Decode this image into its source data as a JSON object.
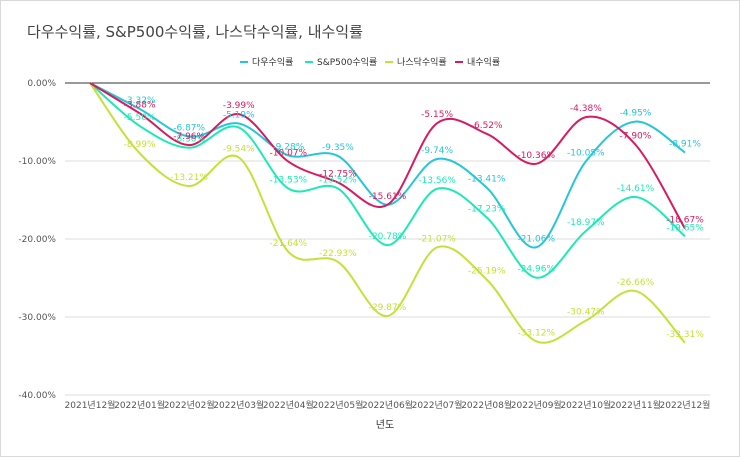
{
  "chart_data": {
    "type": "line",
    "title": "다우수익률, S&P500수익률, 나스닥수익률, 내수익률",
    "xlabel": "년도",
    "ylabel": "",
    "ylim": [
      -40,
      0
    ],
    "y_ticks": [
      0,
      -10,
      -20,
      -30,
      -40
    ],
    "y_tick_labels": [
      "0.00%",
      "-10.00%",
      "-20.00%",
      "-30.00%",
      "-40.00%"
    ],
    "grid": true,
    "legend": "top-center",
    "categories": [
      "2021년12월",
      "2022년01월",
      "2022년02월",
      "2022년03월",
      "2022년04월",
      "2022년05월",
      "2022년06월",
      "2022년07월",
      "2022년08월",
      "2022년09월",
      "2022년10월",
      "2022년11월",
      "2022년12월"
    ],
    "series": [
      {
        "name": "다우수익률",
        "color": "#26c6da",
        "values": [
          0,
          -3.32,
          -6.87,
          -5.19,
          -9.28,
          -9.35,
          -15.61,
          -9.74,
          -13.41,
          -21.06,
          -10.05,
          -4.95,
          -8.91
        ],
        "labels": [
          "",
          "-3.32%",
          "-6.87%",
          "-5.19%",
          "-9.28%",
          "-9.35%",
          "",
          "-9.74%",
          "-13.41%",
          "-21.06%",
          "-10.05%",
          "-4.95%",
          "-8.91%"
        ]
      },
      {
        "name": "S&P500수익률",
        "color": "#1de9b6",
        "values": [
          0,
          -5.5,
          -8.3,
          -5.7,
          -13.53,
          -13.52,
          -20.78,
          -13.56,
          -17.23,
          -24.96,
          -18.97,
          -14.61,
          -19.65
        ],
        "labels": [
          "",
          "-5.50%",
          "-8.30%",
          "",
          "-13.53%",
          "-13.52%",
          "-20.78%",
          "-13.56%",
          "-17.23%",
          "-24.96%",
          "-18.97%",
          "-14.61%",
          "-19.65%"
        ]
      },
      {
        "name": "나스닥수익률",
        "color": "#c6e03a",
        "values": [
          0,
          -8.99,
          -13.21,
          -9.54,
          -21.64,
          -22.93,
          -29.87,
          -21.07,
          -25.19,
          -33.12,
          -30.47,
          -26.66,
          -33.31
        ],
        "labels": [
          "",
          "-8.99%",
          "-13.21%",
          "-9.54%",
          "-21.64%",
          "-22.93%",
          "-29.87%",
          "-21.07%",
          "-25.19%",
          "-33.12%",
          "-30.47%",
          "-26.66%",
          "-33.31%"
        ]
      },
      {
        "name": "내수익률",
        "color": "#d81b60",
        "values": [
          0,
          -3.88,
          -7.96,
          -3.99,
          -10.07,
          -12.75,
          -15.61,
          -5.15,
          -6.52,
          -10.36,
          -4.38,
          -7.9,
          -18.67
        ],
        "labels": [
          "",
          "-3.88%",
          "-7.96%",
          "-3.99%",
          "-10.07%",
          "-12.75%",
          "-15.61%",
          "-5.15%",
          "-6.52%",
          "-10.36%",
          "-4.38%",
          "-7.90%",
          "-18.67%"
        ]
      }
    ]
  }
}
